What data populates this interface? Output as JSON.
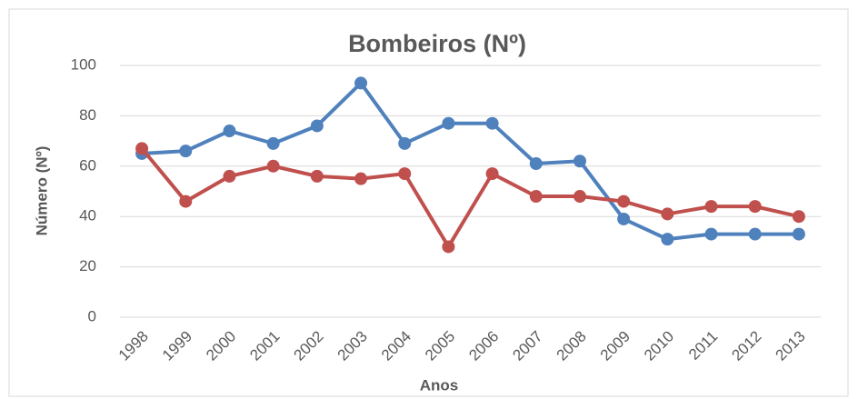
{
  "chart_data": {
    "type": "line",
    "title": "Bombeiros (Nº)",
    "x_label": "Anos",
    "y_label": "Número (Nº)",
    "categories": [
      "1998",
      "1999",
      "2000",
      "2001",
      "2002",
      "2003",
      "2004",
      "2005",
      "2006",
      "2007",
      "2008",
      "2009",
      "2010",
      "2011",
      "2012",
      "2013"
    ],
    "series": [
      {
        "color": "#4f81bd",
        "values": [
          65,
          66,
          74,
          69,
          76,
          93,
          69,
          77,
          77,
          61,
          62,
          39,
          31,
          33,
          33,
          33
        ]
      },
      {
        "color": "#c0504d",
        "values": [
          67,
          46,
          56,
          60,
          56,
          55,
          57,
          28,
          57,
          48,
          48,
          46,
          41,
          44,
          44,
          40
        ]
      }
    ],
    "ylim": [
      0,
      100
    ],
    "yticks": [
      0,
      20,
      40,
      60,
      80,
      100
    ],
    "grid": true
  }
}
